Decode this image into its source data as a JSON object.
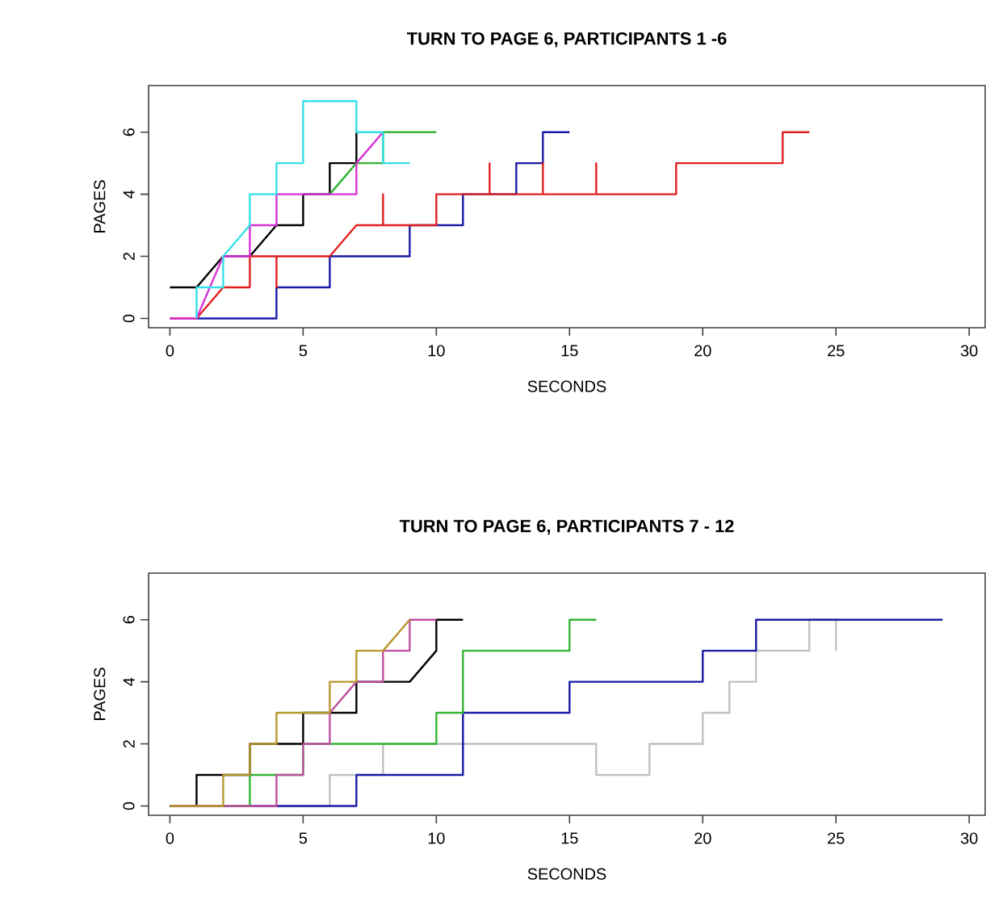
{
  "chart_data": [
    {
      "type": "line",
      "title": "TURN TO PAGE 6, PARTICIPANTS 1 -6",
      "xlabel": "SECONDS",
      "ylabel": "PAGES",
      "xlim": [
        -0.8,
        30.6
      ],
      "ylim": [
        -0.3,
        7.5
      ],
      "xticks": [
        0,
        5,
        10,
        15,
        20,
        25,
        30
      ],
      "yticks": [
        0,
        2,
        4,
        6
      ],
      "grid": false,
      "line_style": "solid",
      "series": [
        {
          "color": "#000000",
          "x": [
            0,
            1,
            1,
            2,
            3,
            4,
            5,
            5,
            6,
            6,
            7,
            7
          ],
          "values": [
            1,
            1,
            1,
            2,
            2,
            3,
            3,
            4,
            4,
            5,
            5,
            6
          ]
        },
        {
          "color": "#1a1aa6",
          "x": [
            1,
            4,
            4,
            6,
            6,
            9,
            9,
            11,
            11,
            13,
            13,
            14,
            14,
            15
          ],
          "values": [
            0,
            0,
            1,
            1,
            2,
            2,
            3,
            3,
            4,
            4,
            5,
            5,
            6,
            6
          ]
        },
        {
          "color": "#e02020",
          "x": [
            0,
            1,
            2,
            3,
            3,
            4,
            4,
            4,
            6,
            7,
            8,
            8,
            8,
            10,
            10,
            10,
            12,
            12,
            12,
            14,
            14,
            14,
            16,
            16,
            16,
            19,
            19,
            23,
            23,
            24
          ],
          "values": [
            0,
            0,
            1,
            1,
            2,
            2,
            1,
            2,
            2,
            3,
            3,
            4,
            3,
            3,
            4,
            4,
            4,
            5,
            4,
            4,
            5,
            4,
            4,
            5,
            4,
            4,
            5,
            5,
            6,
            6
          ]
        },
        {
          "color": "#33b533",
          "x": [
            6,
            7,
            8,
            8,
            10
          ],
          "values": [
            4,
            5,
            5,
            6,
            6
          ]
        },
        {
          "color": "#d633d6",
          "x": [
            0,
            1,
            2,
            3,
            3,
            4,
            4,
            7,
            7,
            8
          ],
          "values": [
            0,
            0,
            2,
            2,
            3,
            3,
            4,
            4,
            5,
            6
          ]
        },
        {
          "color": "#33e0e8",
          "x": [
            1,
            1,
            2,
            2,
            3,
            3,
            4,
            4,
            5,
            5,
            7,
            7,
            8,
            8,
            9
          ],
          "values": [
            0,
            1,
            1,
            2,
            3,
            4,
            4,
            5,
            5,
            7,
            7,
            6,
            6,
            5,
            5
          ]
        }
      ]
    },
    {
      "type": "line",
      "title": "TURN TO PAGE 6, PARTICIPANTS 7 - 12",
      "xlabel": "SECONDS",
      "ylabel": "PAGES",
      "xlim": [
        -0.8,
        30.6
      ],
      "ylim": [
        -0.3,
        7.5
      ],
      "xticks": [
        0,
        5,
        10,
        15,
        20,
        25,
        30
      ],
      "yticks": [
        0,
        2,
        4,
        6
      ],
      "grid": false,
      "line_style": "solid",
      "series": [
        {
          "color": "#c0c0c0",
          "x": [
            0,
            6,
            6,
            8,
            8,
            16,
            16,
            18,
            18,
            20,
            20,
            21,
            21,
            22,
            22,
            24,
            24,
            25,
            25
          ],
          "values": [
            0,
            0,
            1,
            1,
            2,
            2,
            1,
            1,
            2,
            2,
            3,
            3,
            4,
            4,
            5,
            5,
            6,
            6,
            5
          ]
        },
        {
          "color": "#1a1aa6",
          "x": [
            0,
            7,
            7,
            11,
            11,
            15,
            15,
            20,
            20,
            22,
            22,
            29
          ],
          "values": [
            0,
            0,
            1,
            1,
            3,
            3,
            4,
            4,
            5,
            5,
            6,
            6
          ]
        },
        {
          "color": "#33b533",
          "x": [
            0,
            3,
            3,
            5,
            5,
            10,
            10,
            11,
            11,
            15,
            15,
            16
          ],
          "values": [
            0,
            0,
            1,
            1,
            2,
            2,
            3,
            3,
            5,
            5,
            6,
            6
          ]
        },
        {
          "color": "#000000",
          "x": [
            0,
            1,
            1,
            3,
            3,
            5,
            5,
            7,
            7,
            9,
            10,
            10,
            11
          ],
          "values": [
            0,
            0,
            1,
            1,
            2,
            2,
            3,
            3,
            4,
            4,
            5,
            6,
            6
          ]
        },
        {
          "color": "#c050a0",
          "x": [
            0,
            4,
            4,
            5,
            5,
            6,
            6,
            7,
            8,
            8,
            9,
            9,
            10
          ],
          "values": [
            0,
            0,
            1,
            1,
            2,
            2,
            3,
            4,
            4,
            5,
            5,
            6,
            6
          ]
        },
        {
          "color": "#b8962e",
          "x": [
            0,
            2,
            2,
            3,
            3,
            4,
            4,
            6,
            6,
            7,
            7,
            8,
            9
          ],
          "values": [
            0,
            0,
            1,
            1,
            2,
            2,
            3,
            3,
            4,
            4,
            5,
            5,
            6
          ]
        }
      ]
    }
  ]
}
